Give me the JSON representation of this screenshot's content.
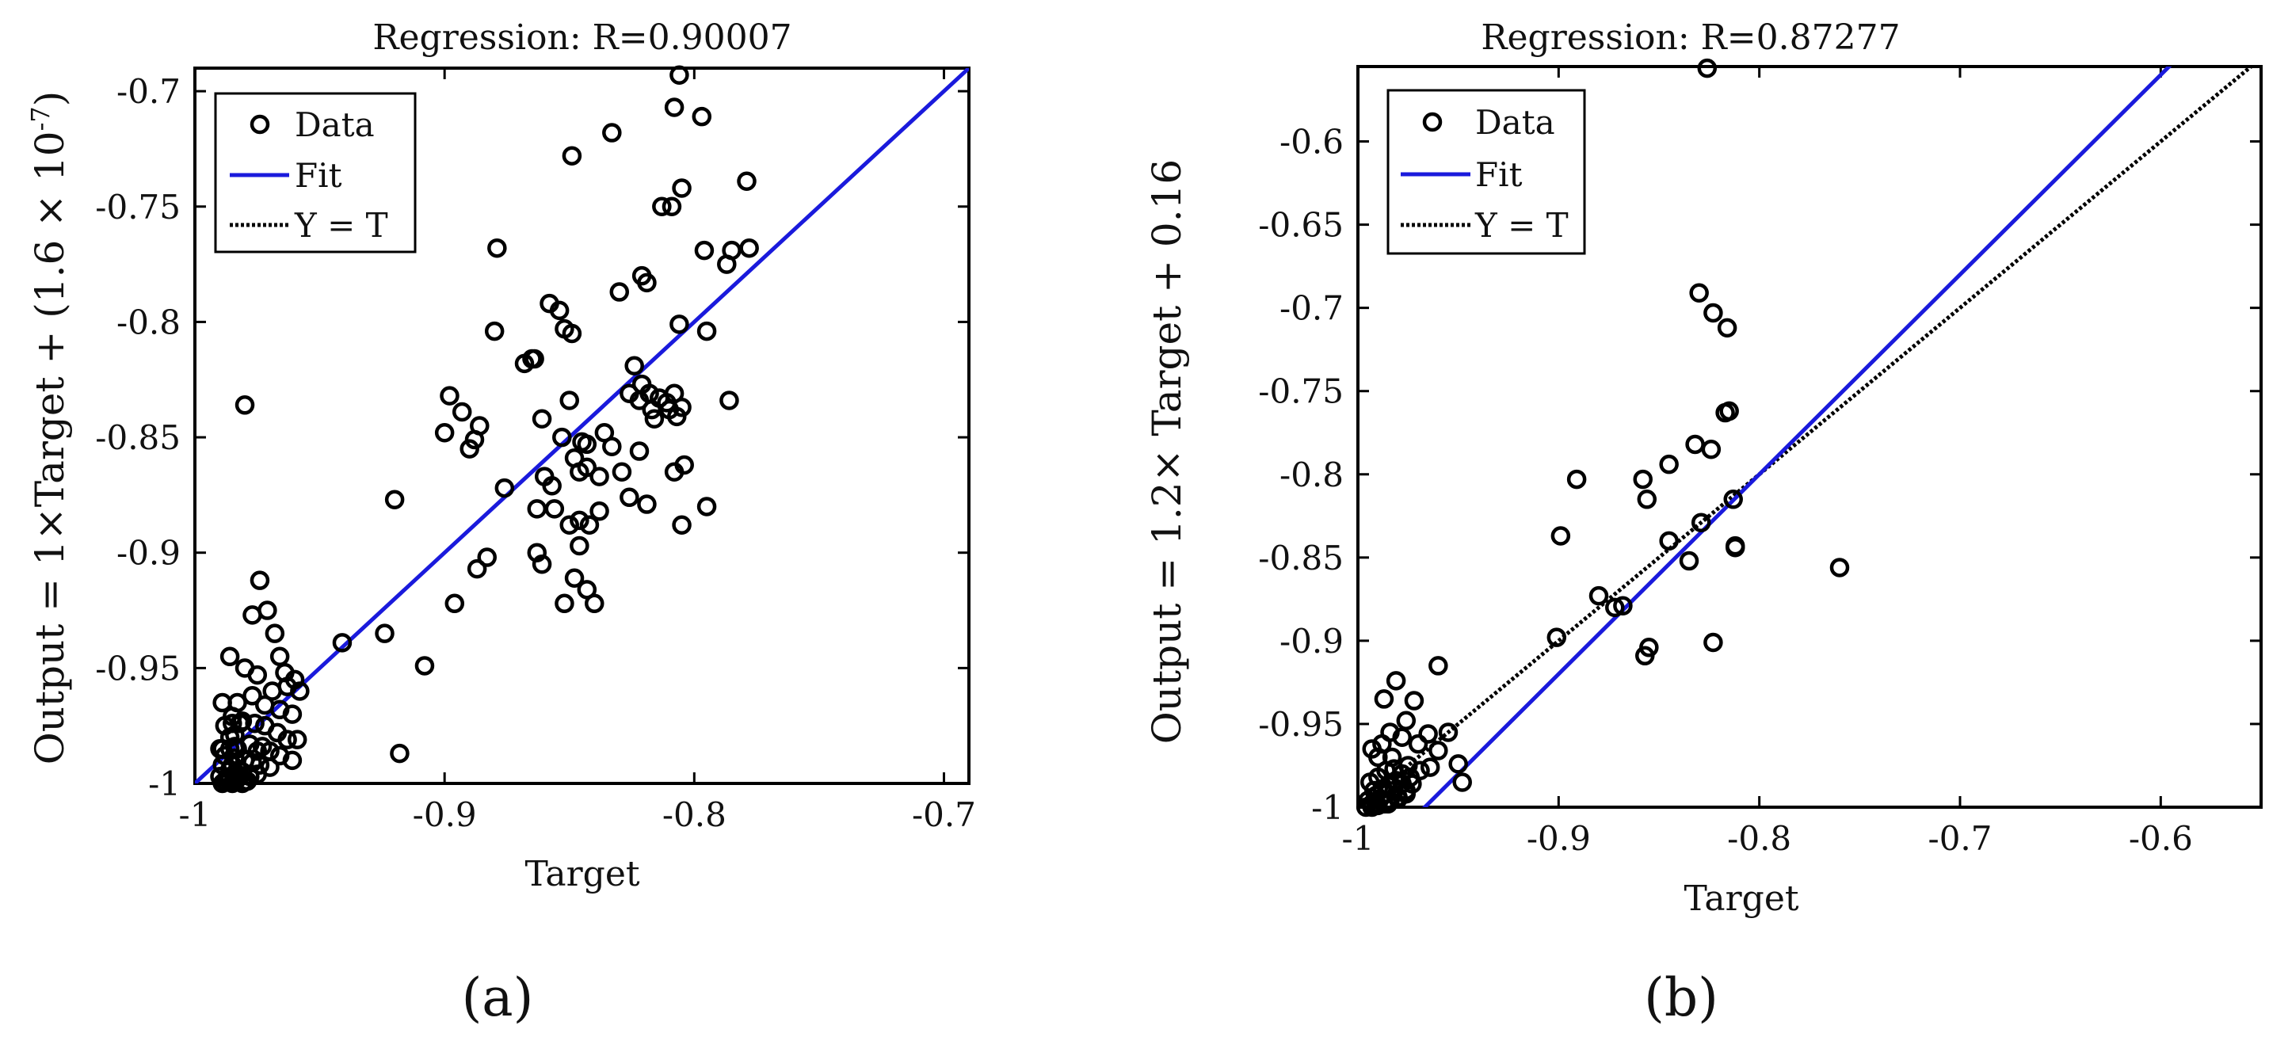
{
  "figure": {
    "panels": [
      {
        "label": "(a)"
      },
      {
        "label": "(b)"
      }
    ]
  },
  "colors": {
    "fit": "#1a1adc",
    "identity": "#000000",
    "data": "#000000",
    "axes": "#000000"
  },
  "chart_data": [
    {
      "type": "scatter",
      "title": "Regression: R=0.90007",
      "xlabel": "Target",
      "ylabel_parts": [
        "Output = 1",
        "×",
        "Target + (1.6 ",
        "×",
        " 10",
        "-7",
        ")"
      ],
      "xlim": [
        -1.0,
        -0.69
      ],
      "ylim": [
        -1.0,
        -0.69
      ],
      "xticks": [
        -1,
        -0.9,
        -0.8,
        -0.7
      ],
      "xtick_labels": [
        "-1",
        "-0.9",
        "-0.8",
        "-0.7"
      ],
      "yticks": [
        -1,
        -0.95,
        -0.9,
        -0.85,
        -0.8,
        -0.75,
        -0.7
      ],
      "ytick_labels": [
        "-1",
        "-0.95",
        "-0.9",
        "-0.85",
        "-0.8",
        "-0.75",
        "-0.7"
      ],
      "legend": [
        "Data",
        "Fit",
        "Y = T"
      ],
      "fit": {
        "slope": 1.0,
        "intercept": 0.0
      },
      "show_identity_line": false,
      "series": [
        {
          "name": "Data",
          "x": [
            -0.806,
            -0.808,
            -0.797,
            -0.849,
            -0.833,
            -0.779,
            -0.805,
            -0.809,
            -0.813,
            -0.778,
            -0.796,
            -0.785,
            -0.787,
            -0.879,
            -0.858,
            -0.821,
            -0.819,
            -0.83,
            -0.854,
            -0.852,
            -0.849,
            -0.795,
            -0.806,
            -0.88,
            -0.868,
            -0.865,
            -0.864,
            -0.824,
            -0.821,
            -0.826,
            -0.818,
            -0.814,
            -0.808,
            -0.817,
            -0.822,
            -0.81,
            -0.805,
            -0.786,
            -0.811,
            -0.807,
            -0.861,
            -0.85,
            -0.898,
            -0.893,
            -0.886,
            -0.9,
            -0.89,
            -0.888,
            -0.853,
            -0.845,
            -0.836,
            -0.843,
            -0.848,
            -0.833,
            -0.816,
            -0.822,
            -0.804,
            -0.808,
            -0.876,
            -0.86,
            -0.857,
            -0.843,
            -0.846,
            -0.838,
            -0.829,
            -0.819,
            -0.826,
            -0.795,
            -0.805,
            -0.92,
            -0.863,
            -0.856,
            -0.85,
            -0.838,
            -0.863,
            -0.861,
            -0.846,
            -0.842,
            -0.883,
            -0.887,
            -0.896,
            -0.846,
            -0.848,
            -0.843,
            -0.852,
            -0.84,
            -0.924,
            -0.908,
            -0.941,
            -0.918,
            -0.98,
            -0.974,
            -0.977,
            -0.971,
            -0.968,
            -0.966,
            -0.964,
            -0.96,
            -0.958,
            -0.986,
            -0.98,
            -0.975,
            -0.969,
            -0.963,
            -0.977,
            -0.983,
            -0.972,
            -0.966,
            -0.961,
            -0.985,
            -0.981,
            -0.976,
            -0.972,
            -0.967,
            -0.963,
            -0.959,
            -0.978,
            -0.984,
            -0.99,
            -0.973,
            -0.97,
            -0.966,
            -0.961,
            -0.988,
            -0.984,
            -0.98,
            -0.977,
            -0.974,
            -0.97,
            -0.975,
            -0.986,
            -0.981,
            -0.975,
            -0.978,
            -0.987,
            -0.983,
            -0.979,
            -0.988,
            -0.984,
            -0.98,
            -0.989,
            -0.985,
            -0.981,
            -0.99,
            -0.986,
            -0.982,
            -0.989,
            -0.985,
            -0.989,
            -0.986,
            -0.983,
            -0.986,
            -0.984,
            -0.988,
            -0.985,
            -0.982,
            -0.989
          ],
          "y": [
            -0.693,
            -0.707,
            -0.711,
            -0.728,
            -0.718,
            -0.739,
            -0.742,
            -0.75,
            -0.75,
            -0.768,
            -0.769,
            -0.769,
            -0.775,
            -0.768,
            -0.792,
            -0.78,
            -0.783,
            -0.787,
            -0.795,
            -0.803,
            -0.805,
            -0.804,
            -0.801,
            -0.804,
            -0.818,
            -0.816,
            -0.816,
            -0.819,
            -0.827,
            -0.831,
            -0.831,
            -0.833,
            -0.831,
            -0.838,
            -0.834,
            -0.838,
            -0.837,
            -0.834,
            -0.835,
            -0.841,
            -0.842,
            -0.834,
            -0.832,
            -0.839,
            -0.845,
            -0.848,
            -0.855,
            -0.851,
            -0.85,
            -0.852,
            -0.848,
            -0.853,
            -0.859,
            -0.854,
            -0.842,
            -0.856,
            -0.862,
            -0.865,
            -0.872,
            -0.867,
            -0.871,
            -0.863,
            -0.865,
            -0.867,
            -0.865,
            -0.879,
            -0.876,
            -0.88,
            -0.888,
            -0.877,
            -0.881,
            -0.881,
            -0.888,
            -0.882,
            -0.9,
            -0.905,
            -0.886,
            -0.888,
            -0.902,
            -0.907,
            -0.922,
            -0.897,
            -0.911,
            -0.916,
            -0.922,
            -0.922,
            -0.935,
            -0.949,
            -0.939,
            -0.987,
            -0.836,
            -0.912,
            -0.927,
            -0.925,
            -0.935,
            -0.945,
            -0.952,
            -0.955,
            -0.96,
            -0.945,
            -0.95,
            -0.953,
            -0.96,
            -0.958,
            -0.962,
            -0.965,
            -0.966,
            -0.968,
            -0.97,
            -0.971,
            -0.973,
            -0.974,
            -0.975,
            -0.978,
            -0.981,
            -0.981,
            -0.983,
            -0.984,
            -0.985,
            -0.984,
            -0.986,
            -0.988,
            -0.99,
            -0.988,
            -0.989,
            -0.99,
            -0.991,
            -0.992,
            -0.993,
            -0.986,
            -0.994,
            -0.995,
            -0.996,
            -0.997,
            -0.998,
            -0.998,
            -0.999,
            -0.999,
            -0.999,
            -0.999,
            -1.0,
            -1.0,
            -1.0,
            -0.997,
            -0.997,
            -0.997,
            -0.992,
            -0.992,
            -0.985,
            -0.985,
            -0.985,
            -0.98,
            -0.979,
            -0.975,
            -0.974,
            -0.974,
            -0.965
          ]
        }
      ]
    },
    {
      "type": "scatter",
      "title": "Regression: R=0.87277",
      "xlabel": "Target",
      "ylabel_parts": [
        "Output = 1.2",
        "×",
        " Target + 0.16"
      ],
      "xlim": [
        -1.0,
        -0.55
      ],
      "ylim": [
        -1.0,
        -0.555
      ],
      "xticks": [
        -1,
        -0.9,
        -0.8,
        -0.7,
        -0.6
      ],
      "xtick_labels": [
        "-1",
        "-0.9",
        "-0.8",
        "-0.7",
        "-0.6"
      ],
      "yticks": [
        -1,
        -0.95,
        -0.9,
        -0.85,
        -0.8,
        -0.75,
        -0.7,
        -0.65,
        -0.6
      ],
      "ytick_labels": [
        "-1",
        "-0.95",
        "-0.9",
        "-0.85",
        "-0.8",
        "-0.75",
        "-0.7",
        "-0.65",
        "-0.6"
      ],
      "legend": [
        "Data",
        "Fit",
        "Y = T"
      ],
      "fit": {
        "slope": 1.2,
        "intercept": 0.16
      },
      "show_identity_line": true,
      "series": [
        {
          "name": "Data",
          "x": [
            -0.826,
            -0.83,
            -0.823,
            -0.816,
            -0.817,
            -0.815,
            -0.832,
            -0.824,
            -0.891,
            -0.858,
            -0.845,
            -0.856,
            -0.829,
            -0.813,
            -0.76,
            -0.899,
            -0.812,
            -0.812,
            -0.88,
            -0.872,
            -0.868,
            -0.835,
            -0.845,
            -0.855,
            -0.857,
            -0.823,
            -0.901,
            -0.96,
            -0.981,
            -0.987,
            -0.972,
            -0.976,
            -0.984,
            -0.965,
            -0.978,
            -0.988,
            -0.993,
            -0.99,
            -0.983,
            -0.97,
            -0.975,
            -0.982,
            -0.978,
            -0.986,
            -0.99,
            -0.994,
            -0.992,
            -0.981,
            -0.985,
            -0.988,
            -0.991,
            -0.995,
            -0.993,
            -0.989,
            -0.986,
            -0.982,
            -0.978,
            -0.974,
            -0.991,
            -0.987,
            -0.984,
            -0.98,
            -0.976,
            -0.973,
            -0.996,
            -0.993,
            -0.99,
            -0.985,
            -0.98,
            -0.976,
            -0.969,
            -0.964,
            -0.96,
            -0.955,
            -0.948,
            -0.95
          ],
          "y": [
            -0.556,
            -0.691,
            -0.703,
            -0.712,
            -0.763,
            -0.762,
            -0.782,
            -0.785,
            -0.803,
            -0.803,
            -0.794,
            -0.815,
            -0.829,
            -0.815,
            -0.856,
            -0.837,
            -0.844,
            -0.843,
            -0.873,
            -0.88,
            -0.879,
            -0.852,
            -0.84,
            -0.904,
            -0.909,
            -0.901,
            -0.898,
            -0.915,
            -0.924,
            -0.935,
            -0.936,
            -0.948,
            -0.955,
            -0.956,
            -0.958,
            -0.962,
            -0.965,
            -0.97,
            -0.97,
            -0.962,
            -0.975,
            -0.977,
            -0.98,
            -0.978,
            -0.982,
            -0.985,
            -0.99,
            -0.984,
            -0.987,
            -0.989,
            -0.993,
            -0.996,
            -0.998,
            -0.995,
            -0.992,
            -0.99,
            -0.986,
            -0.982,
            -0.999,
            -0.998,
            -0.996,
            -0.994,
            -0.99,
            -0.986,
            -1.0,
            -1.0,
            -0.999,
            -0.998,
            -0.995,
            -0.992,
            -0.978,
            -0.976,
            -0.966,
            -0.955,
            -0.985,
            -0.974
          ]
        }
      ]
    }
  ]
}
